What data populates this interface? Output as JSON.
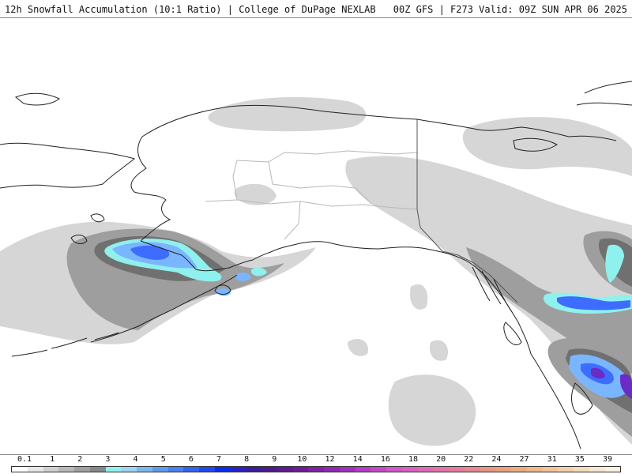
{
  "header": {
    "title_left": "12h Snowfall Accumulation (10:1 Ratio) | College of DuPage NEXLAB",
    "title_right": "00Z GFS | F273 Valid: 09Z SUN APR 06 2025"
  },
  "colors": {
    "land_outline": "#222222",
    "boundary": "#b8b8b8",
    "light_snow": "#d6d6d6",
    "moderate_snow": "#9e9e9e",
    "heavy_snow": "#707070",
    "cyan": "#8ff0ee",
    "blue_light": "#7ab6ff",
    "blue_mid": "#3d6cff",
    "purple": "#6a2cc4"
  },
  "legend": {
    "tick_labels": [
      "0.1",
      "1",
      "2",
      "3",
      "4",
      "5",
      "6",
      "7",
      "8",
      "9",
      "10",
      "12",
      "14",
      "16",
      "18",
      "20",
      "22",
      "24",
      "27",
      "31",
      "35",
      "39"
    ],
    "swatches": [
      "#ffffff",
      "#e8e8e8",
      "#d0d0d0",
      "#b8b8b8",
      "#a0a0a0",
      "#888888",
      "#8ff0ee",
      "#9fd4f2",
      "#7cb8f0",
      "#5c9cf0",
      "#4a80f4",
      "#3064f4",
      "#1e48f4",
      "#0c2cf0",
      "#2a22c8",
      "#3a1ca0",
      "#4c1a8c",
      "#5e1a8e",
      "#701c98",
      "#8220a6",
      "#9426b4",
      "#a42ec0",
      "#b43cc8",
      "#c448cc",
      "#d456c8",
      "#dc5ec0",
      "#e068b4",
      "#e472a8",
      "#e67c9c",
      "#e8888e",
      "#ea9484",
      "#eca07c",
      "#eeac7a",
      "#f0b884",
      "#f2c496",
      "#f4d0aa",
      "#f6dcbe",
      "#f8e8d2",
      "#fbf2e4"
    ]
  }
}
